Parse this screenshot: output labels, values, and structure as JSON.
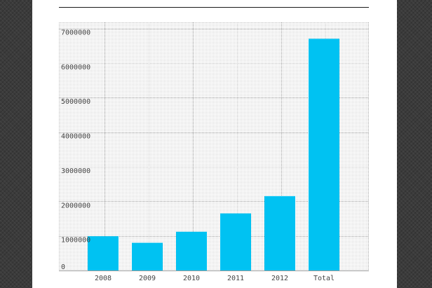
{
  "chart_data": {
    "type": "bar",
    "categories": [
      "2008",
      "2009",
      "2010",
      "2011",
      "2012",
      "Total"
    ],
    "values": [
      990000,
      800000,
      1120000,
      1650000,
      2150000,
      6700000
    ],
    "title": "",
    "xlabel": "",
    "ylabel": "",
    "ylim": [
      0,
      7000000
    ],
    "yticks": [
      "0",
      "1000000",
      "2000000",
      "3000000",
      "4000000",
      "5000000",
      "6000000",
      "7000000"
    ],
    "grid": true,
    "legend": "none",
    "colors": {
      "bar": "#00c2f2",
      "grid_dots": "#b4b4b4",
      "panel": "#ffffff",
      "background": "#3b3b3b"
    }
  }
}
